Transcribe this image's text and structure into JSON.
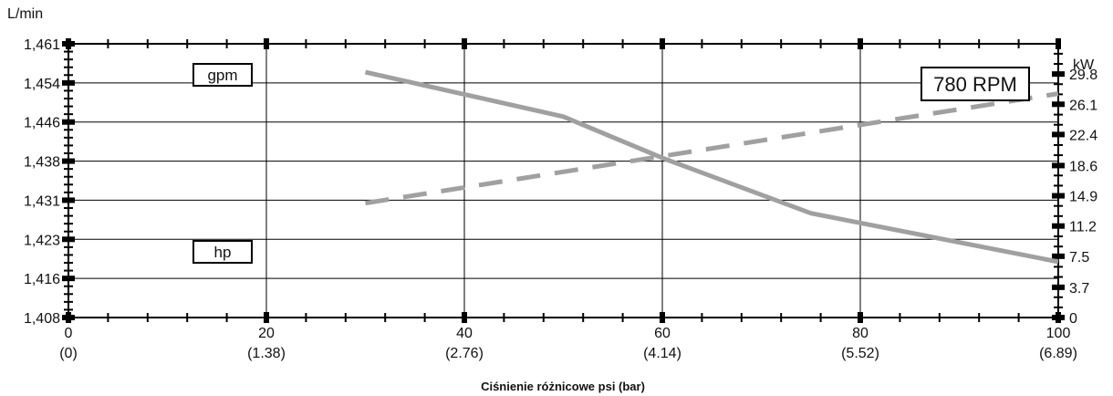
{
  "chart_data": {
    "type": "line",
    "title": "",
    "xlabel": "Ciśnienie różnicowe psi (bar)",
    "ylabel_left": "L/min",
    "ylabel_right": "kW",
    "x_ticks": [
      0,
      20,
      40,
      60,
      80,
      100
    ],
    "x_ticks_bar": [
      "(0)",
      "(1.38)",
      "(2.76)",
      "(4.14)",
      "(5.52)",
      "(6.89)"
    ],
    "xlim": [
      0,
      100
    ],
    "y_left_ticks": [
      "1,408",
      "1,416",
      "1,423",
      "1,431",
      "1,438",
      "1,446",
      "1,454",
      "1,461"
    ],
    "y_right_ticks": [
      "0",
      "3.7",
      "7.5",
      "11.2",
      "14.9",
      "18.6",
      "22.4",
      "26.1",
      "29.8"
    ],
    "y_right_range": [
      0,
      33.5
    ],
    "annotations": {
      "rpm": "780 RPM",
      "gpm_box": "gpm",
      "hp_box": "hp"
    },
    "grid": true,
    "series": [
      {
        "axis": "left",
        "style": "solid",
        "color": "#a0a0a0",
        "x": [
          30,
          50,
          60,
          75,
          100
        ],
        "y": [
          1.4555,
          1.4469,
          1.4389,
          1.4282,
          1.4188
        ]
      },
      {
        "axis": "right",
        "style": "dashed",
        "color": "#a0a0a0",
        "x": [
          30,
          100
        ],
        "y": [
          14.0,
          27.4
        ]
      }
    ]
  }
}
